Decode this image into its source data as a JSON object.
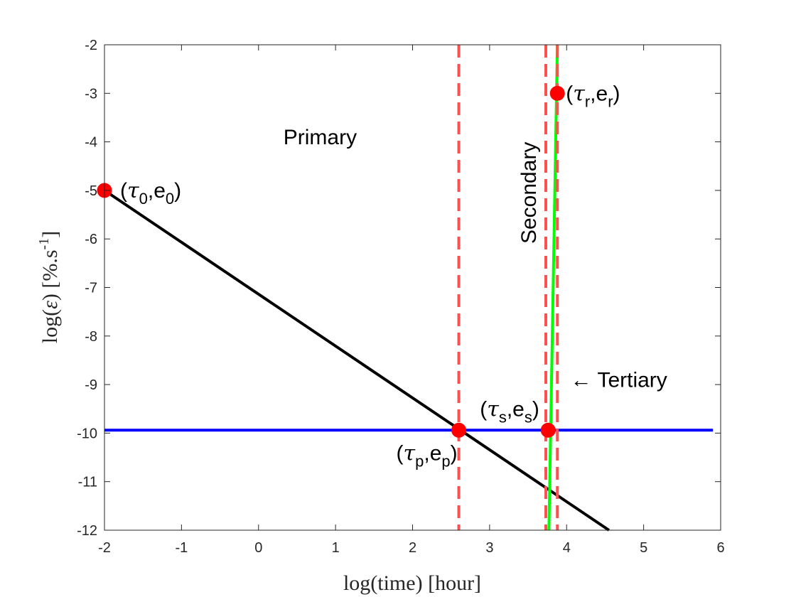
{
  "chart_data": {
    "type": "line",
    "xlabel": "log(time) [hour]",
    "ylabel": "log(ε) [%.s⁻¹]",
    "xlim": [
      -2,
      6
    ],
    "ylim": [
      -12,
      -2
    ],
    "xticks": [
      -2,
      -1,
      0,
      1,
      2,
      3,
      4,
      5,
      6
    ],
    "yticks": [
      -12,
      -11,
      -10,
      -9,
      -8,
      -7,
      -6,
      -5,
      -4,
      -3,
      -2
    ],
    "grid": false,
    "colors": {
      "primary_line": "#000000",
      "steady_line": "#0000ff",
      "tertiary_line": "#00ff00",
      "boundary_lines": "#ff5050",
      "points": "#ff0000"
    },
    "series": [
      {
        "x": [
          -2,
          4.55
        ],
        "y": [
          -5,
          -12
        ]
      },
      {
        "x": [
          -2,
          5.9
        ],
        "y": [
          -9.94,
          -9.94
        ]
      },
      {
        "x": [
          3.77,
          3.88
        ],
        "y": [
          -12,
          -2
        ]
      }
    ],
    "vlines": [
      2.6,
      3.73,
      3.88
    ],
    "points": [
      {
        "x": -2,
        "y": -5,
        "sym": "τ",
        "sub1": "0",
        "mid": ",e",
        "sub2": "0"
      },
      {
        "x": 2.6,
        "y": -9.94,
        "sym": "τ",
        "sub1": "p",
        "mid": ",e",
        "sub2": "p"
      },
      {
        "x": 3.76,
        "y": -9.94,
        "sym": "τ",
        "sub1": "s",
        "mid": ",e",
        "sub2": "s"
      },
      {
        "x": 3.88,
        "y": -3,
        "sym": "τ",
        "sub1": "r",
        "mid": ",e",
        "sub2": "r"
      }
    ],
    "annotations": [
      {
        "text": "Primary",
        "x": 0.8,
        "y": -4.05
      },
      {
        "text": "Secondary",
        "x": 3.4,
        "y": -5.05,
        "rotate": -90
      },
      {
        "text": "← Tertiary",
        "x": 4.05,
        "y": -9.05
      }
    ]
  }
}
